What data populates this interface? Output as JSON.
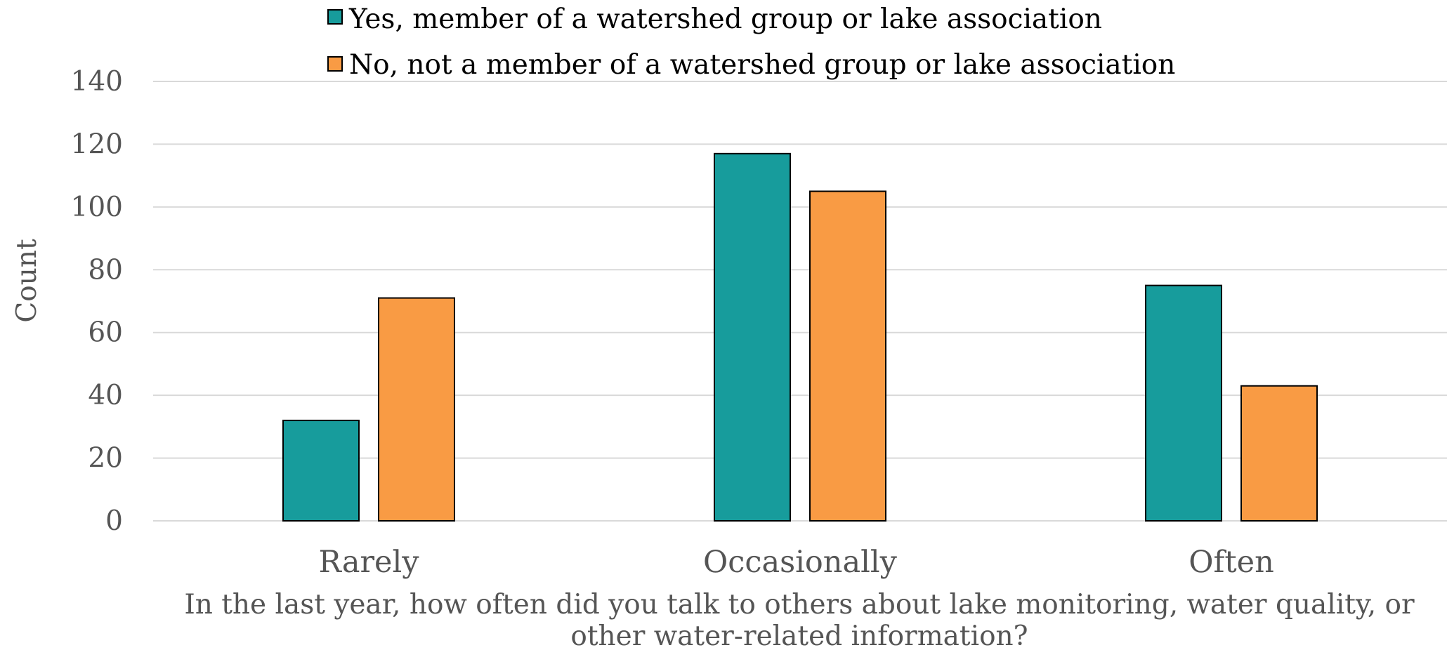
{
  "chart_data": {
    "type": "bar",
    "categories": [
      "Rarely",
      "Occasionally",
      "Often"
    ],
    "series": [
      {
        "name": "Yes, member of a watershed group or lake association",
        "color": "#179c9c",
        "values": [
          32,
          117,
          75
        ]
      },
      {
        "name": "No, not a member of a watershed group or lake association",
        "color": "#f99b44",
        "values": [
          71,
          105,
          43
        ]
      }
    ],
    "ylabel": "Count",
    "xlabel_lines": [
      "In the last year, how often did you talk to others about lake monitoring, water quality, or",
      "other water-related information?"
    ],
    "ylim": [
      0,
      140
    ],
    "yticks": [
      0,
      20,
      40,
      60,
      80,
      100,
      120,
      140
    ],
    "grid": true,
    "legend_position": "top"
  }
}
